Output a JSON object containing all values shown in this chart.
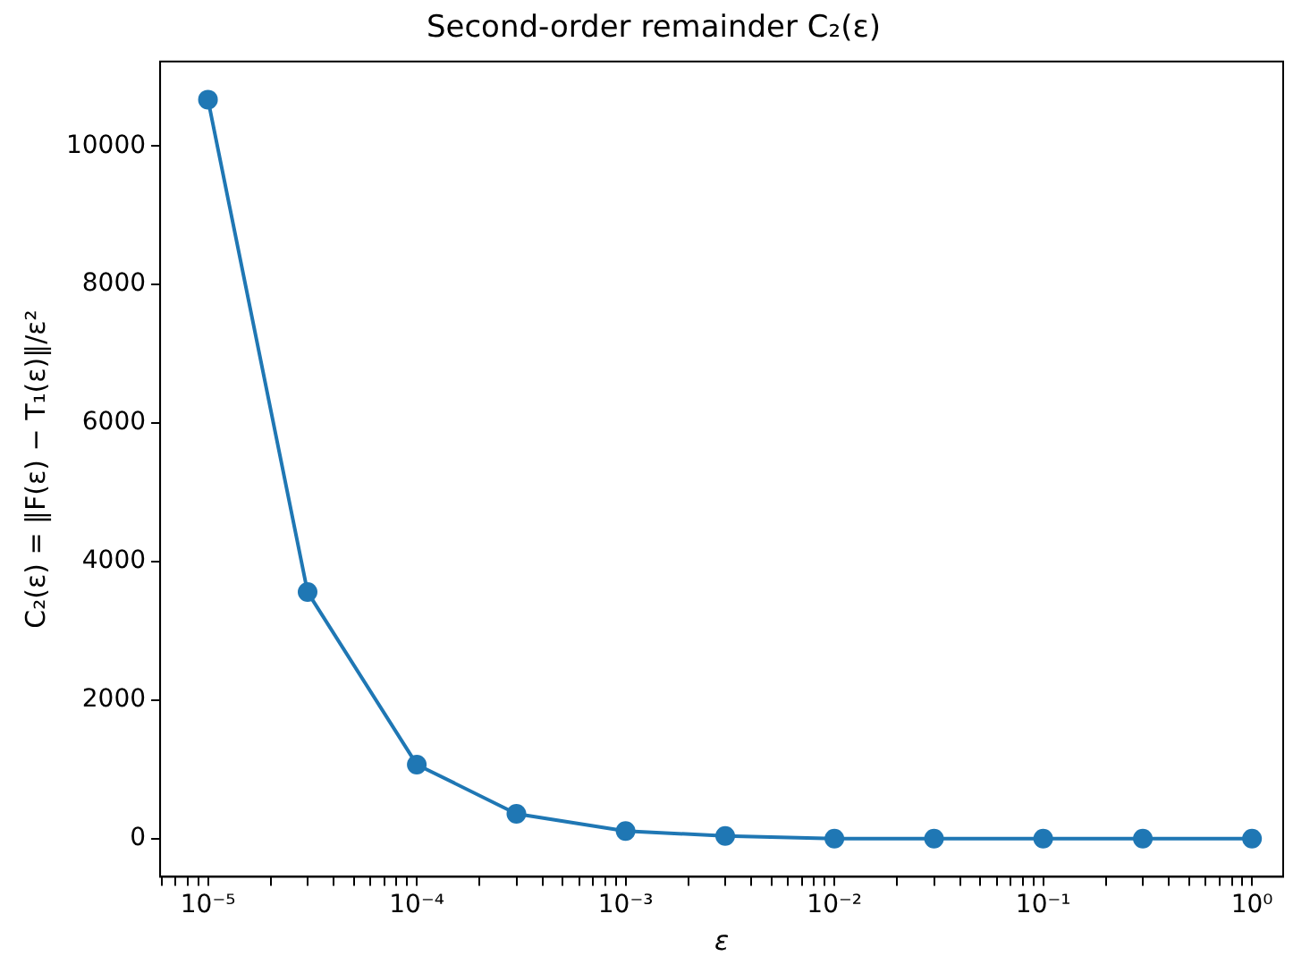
{
  "chart_data": {
    "type": "line",
    "title": "Second-order remainder C₂(ε)",
    "xlabel": "ε",
    "ylabel": "C₂(ε) = ‖F(ε) − T₁(ε)‖/ε²",
    "x": [
      1e-05,
      3e-05,
      0.0001,
      0.0003,
      0.001,
      0.003,
      0.01,
      0.03,
      0.1,
      0.3,
      1
    ],
    "series": [
      {
        "color": "#1f77b4",
        "values": [
          10670,
          3560,
          1070,
          360,
          110,
          40,
          0,
          0,
          0,
          0,
          0
        ]
      }
    ],
    "log": "x",
    "xlim": [
      5.9e-06,
      1.41
    ],
    "ylim": [
      -550,
      11220
    ],
    "xticks": [
      {
        "value": 6e-06,
        "label": null
      },
      {
        "value": 7e-06,
        "label": null
      },
      {
        "value": 8e-06,
        "label": null
      },
      {
        "value": 9e-06,
        "label": null
      },
      {
        "value": 1e-05,
        "label": "10⁻⁵"
      },
      {
        "value": 2e-05,
        "label": null
      },
      {
        "value": 3e-05,
        "label": null
      },
      {
        "value": 4e-05,
        "label": null
      },
      {
        "value": 5e-05,
        "label": null
      },
      {
        "value": 6e-05,
        "label": null
      },
      {
        "value": 7e-05,
        "label": null
      },
      {
        "value": 8e-05,
        "label": null
      },
      {
        "value": 9e-05,
        "label": null
      },
      {
        "value": 0.0001,
        "label": "10⁻⁴"
      },
      {
        "value": 0.0002,
        "label": null
      },
      {
        "value": 0.0003,
        "label": null
      },
      {
        "value": 0.0004,
        "label": null
      },
      {
        "value": 0.0005,
        "label": null
      },
      {
        "value": 0.0006,
        "label": null
      },
      {
        "value": 0.0007,
        "label": null
      },
      {
        "value": 0.0008,
        "label": null
      },
      {
        "value": 0.0009,
        "label": null
      },
      {
        "value": 0.001,
        "label": "10⁻³"
      },
      {
        "value": 0.002,
        "label": null
      },
      {
        "value": 0.003,
        "label": null
      },
      {
        "value": 0.004,
        "label": null
      },
      {
        "value": 0.005,
        "label": null
      },
      {
        "value": 0.006,
        "label": null
      },
      {
        "value": 0.007,
        "label": null
      },
      {
        "value": 0.008,
        "label": null
      },
      {
        "value": 0.009,
        "label": null
      },
      {
        "value": 0.01,
        "label": "10⁻²"
      },
      {
        "value": 0.02,
        "label": null
      },
      {
        "value": 0.03,
        "label": null
      },
      {
        "value": 0.04,
        "label": null
      },
      {
        "value": 0.05,
        "label": null
      },
      {
        "value": 0.06,
        "label": null
      },
      {
        "value": 0.07,
        "label": null
      },
      {
        "value": 0.08,
        "label": null
      },
      {
        "value": 0.09,
        "label": null
      },
      {
        "value": 0.1,
        "label": "10⁻¹"
      },
      {
        "value": 0.2,
        "label": null
      },
      {
        "value": 0.3,
        "label": null
      },
      {
        "value": 0.4,
        "label": null
      },
      {
        "value": 0.5,
        "label": null
      },
      {
        "value": 0.6,
        "label": null
      },
      {
        "value": 0.7,
        "label": null
      },
      {
        "value": 0.8,
        "label": null
      },
      {
        "value": 0.9,
        "label": null
      },
      {
        "value": 1,
        "label": "10⁰"
      }
    ],
    "yticks": [
      0,
      2000,
      4000,
      6000,
      8000,
      10000
    ],
    "marker": "circle",
    "line_style": "solid",
    "grid": false,
    "legend": false
  }
}
